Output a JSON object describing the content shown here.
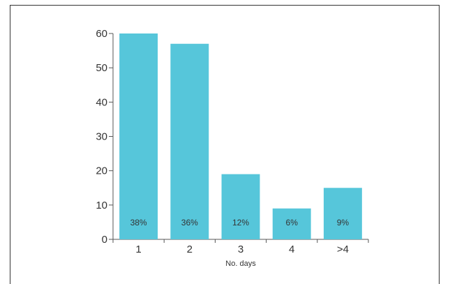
{
  "chart_data": {
    "type": "bar",
    "categories": [
      "1",
      "2",
      "3",
      "4",
      ">4"
    ],
    "values": [
      60,
      57,
      19,
      9,
      15
    ],
    "percent_labels": [
      "38%",
      "36%",
      "12%",
      "6%",
      "9%"
    ],
    "title": "",
    "xlabel": "No. days",
    "ylabel": "",
    "ylim": [
      0,
      60
    ],
    "yticks": [
      "0",
      "10",
      "20",
      "30",
      "40",
      "50",
      "60"
    ],
    "grid": false,
    "bar_color": "#56c6da"
  }
}
